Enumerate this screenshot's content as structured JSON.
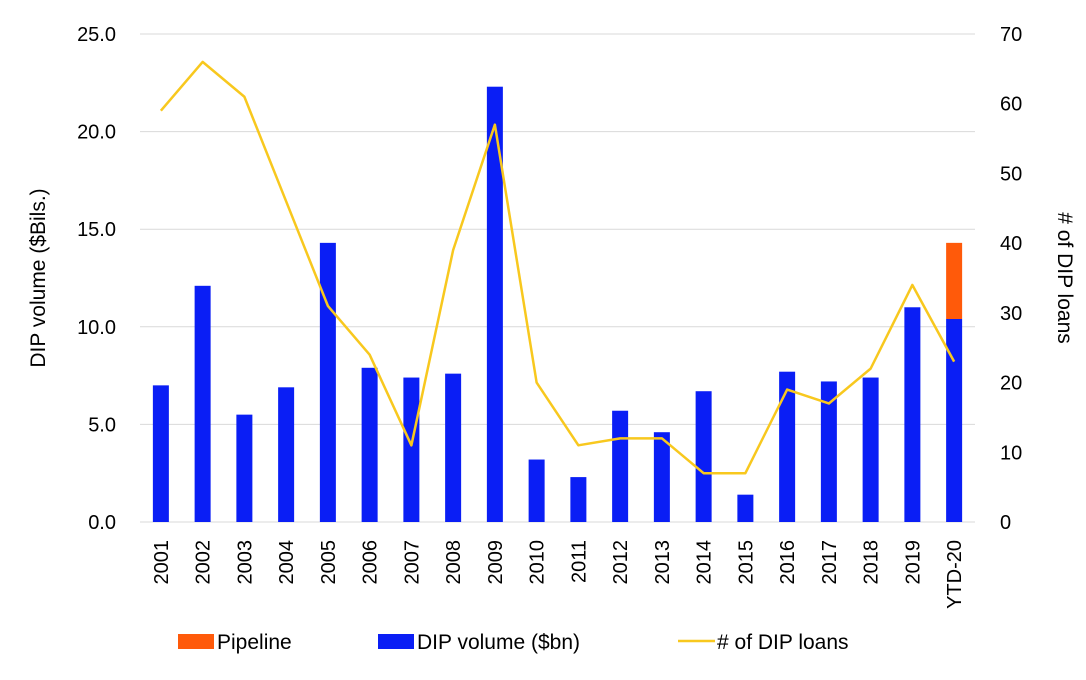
{
  "chart_data": {
    "type": "bar",
    "categories": [
      "2001",
      "2002",
      "2003",
      "2004",
      "2005",
      "2006",
      "2007",
      "2008",
      "2009",
      "2010",
      "2011",
      "2012",
      "2013",
      "2014",
      "2015",
      "2016",
      "2017",
      "2018",
      "2019",
      "YTD-20"
    ],
    "series": [
      {
        "name": "DIP volume ($bn)",
        "type": "bar",
        "axis": "left",
        "color": "#0a1ef5",
        "values": [
          7.0,
          12.1,
          5.5,
          6.9,
          14.3,
          7.9,
          7.4,
          7.6,
          22.3,
          3.2,
          2.3,
          5.7,
          4.6,
          6.7,
          1.4,
          7.7,
          7.2,
          7.4,
          11.0,
          10.4
        ]
      },
      {
        "name": "Pipeline",
        "type": "bar",
        "stacked_on": "DIP volume ($bn)",
        "axis": "left",
        "color": "#ff5a0a",
        "values": [
          0,
          0,
          0,
          0,
          0,
          0,
          0,
          0,
          0,
          0,
          0,
          0,
          0,
          0,
          0,
          0,
          0,
          0,
          0,
          3.9
        ]
      },
      {
        "name": "# of DIP loans",
        "type": "line",
        "axis": "right",
        "color": "#f8c81e",
        "values": [
          59,
          66,
          61,
          46,
          31,
          24,
          11,
          39,
          57,
          20,
          11,
          12,
          12,
          7,
          7,
          19,
          17,
          22,
          34,
          23
        ]
      }
    ],
    "y_left": {
      "label": "DIP volume ($Bils.)",
      "ylim": [
        0,
        25
      ],
      "ticks": [
        "0.0",
        "5.0",
        "10.0",
        "15.0",
        "20.0",
        "25.0"
      ]
    },
    "y_right": {
      "label": "# of DIP loans",
      "ylim": [
        0,
        70
      ],
      "ticks": [
        "0",
        "10",
        "20",
        "30",
        "40",
        "50",
        "60",
        "70"
      ]
    },
    "grid": true,
    "legend": {
      "placement": "bottom",
      "entries": [
        "Pipeline",
        "DIP volume ($bn)",
        "# of DIP loans"
      ]
    }
  }
}
